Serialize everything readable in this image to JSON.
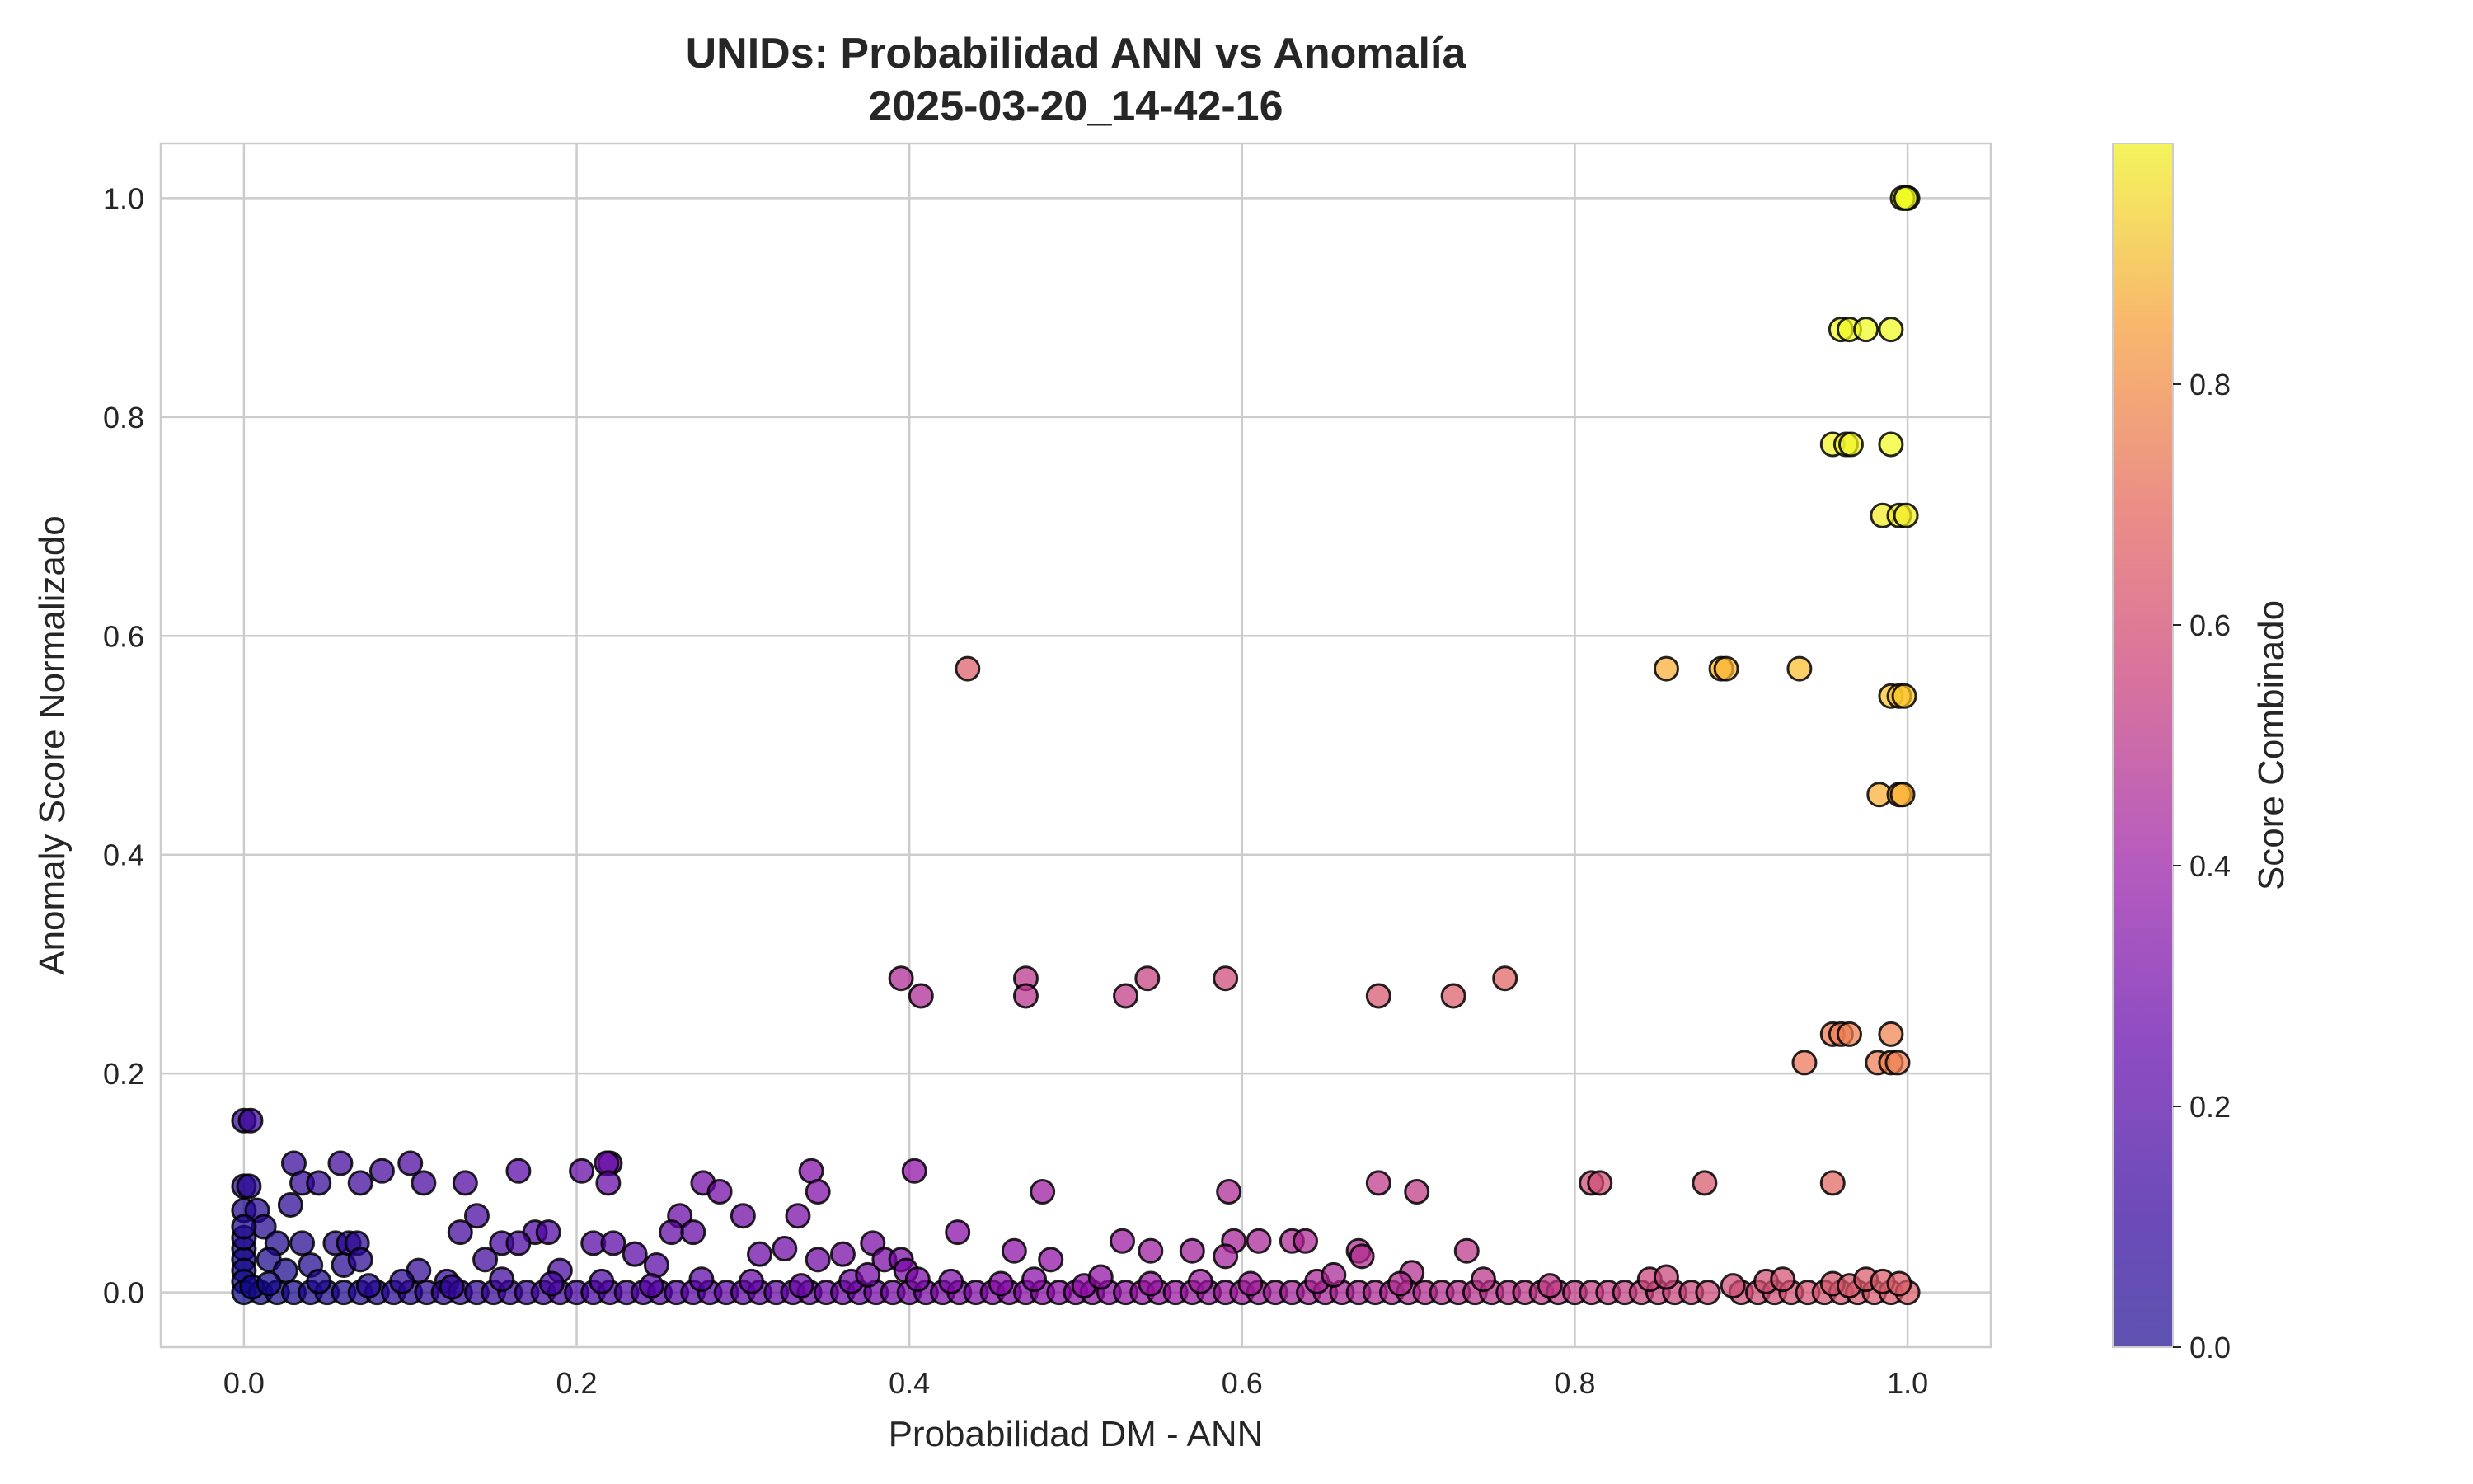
{
  "chart_data": {
    "type": "scatter",
    "title": "UNIDs: Probabilidad ANN vs Anomalía",
    "subtitle": "2025-03-20_14-42-16",
    "xlabel": "Probabilidad DM - ANN",
    "ylabel": "Anomaly Score Normalizado",
    "xlim": [
      -0.05,
      1.05
    ],
    "ylim": [
      -0.05,
      1.05
    ],
    "x_ticks": [
      0.0,
      0.2,
      0.4,
      0.6,
      0.8,
      1.0
    ],
    "y_ticks": [
      0.0,
      0.2,
      0.4,
      0.6,
      0.8,
      1.0
    ],
    "x_tick_labels": [
      "0.0",
      "0.2",
      "0.4",
      "0.6",
      "0.8",
      "1.0"
    ],
    "y_tick_labels": [
      "0.0",
      "0.2",
      "0.4",
      "0.6",
      "0.8",
      "1.0"
    ],
    "grid": true,
    "colormap": "plasma",
    "marker_edge_color": "#000000",
    "colorbar": {
      "label": "Score Combinado",
      "range": [
        0.0,
        1.0
      ],
      "ticks": [
        0.0,
        0.2,
        0.4,
        0.6,
        0.8
      ],
      "tick_labels": [
        "0.0",
        "0.2",
        "0.4",
        "0.6",
        "0.8"
      ]
    },
    "points": [
      [
        1.0,
        1.0
      ],
      [
        0.997,
        1.0
      ],
      [
        0.999,
        1.0
      ],
      [
        0.96,
        0.88
      ],
      [
        0.965,
        0.88
      ],
      [
        0.975,
        0.88
      ],
      [
        0.99,
        0.88
      ],
      [
        0.955,
        0.775
      ],
      [
        0.963,
        0.775
      ],
      [
        0.966,
        0.775
      ],
      [
        0.99,
        0.775
      ],
      [
        0.985,
        0.71
      ],
      [
        0.995,
        0.71
      ],
      [
        0.999,
        0.71
      ],
      [
        0.435,
        0.57
      ],
      [
        0.855,
        0.57
      ],
      [
        0.888,
        0.57
      ],
      [
        0.891,
        0.57
      ],
      [
        0.935,
        0.57
      ],
      [
        0.99,
        0.545
      ],
      [
        0.995,
        0.545
      ],
      [
        0.998,
        0.545
      ],
      [
        0.983,
        0.455
      ],
      [
        0.995,
        0.455
      ],
      [
        0.997,
        0.455
      ],
      [
        0.395,
        0.287
      ],
      [
        0.47,
        0.287
      ],
      [
        0.543,
        0.287
      ],
      [
        0.59,
        0.287
      ],
      [
        0.758,
        0.287
      ],
      [
        0.407,
        0.271
      ],
      [
        0.47,
        0.271
      ],
      [
        0.53,
        0.271
      ],
      [
        0.682,
        0.271
      ],
      [
        0.727,
        0.271
      ],
      [
        0.955,
        0.236
      ],
      [
        0.96,
        0.236
      ],
      [
        0.965,
        0.236
      ],
      [
        0.99,
        0.236
      ],
      [
        0.938,
        0.21
      ],
      [
        0.982,
        0.21
      ],
      [
        0.99,
        0.21
      ],
      [
        0.994,
        0.21
      ],
      [
        0.0,
        0.157
      ],
      [
        0.004,
        0.157
      ],
      [
        0.03,
        0.118
      ],
      [
        0.058,
        0.118
      ],
      [
        0.1,
        0.118
      ],
      [
        0.22,
        0.118
      ],
      [
        0.218,
        0.118
      ],
      [
        0.083,
        0.111
      ],
      [
        0.165,
        0.111
      ],
      [
        0.203,
        0.111
      ],
      [
        0.341,
        0.111
      ],
      [
        0.403,
        0.111
      ],
      [
        0.035,
        0.1
      ],
      [
        0.045,
        0.1
      ],
      [
        0.07,
        0.1
      ],
      [
        0.108,
        0.1
      ],
      [
        0.133,
        0.1
      ],
      [
        0.219,
        0.1
      ],
      [
        0.276,
        0.1
      ],
      [
        0.682,
        0.1
      ],
      [
        0.81,
        0.1
      ],
      [
        0.815,
        0.1
      ],
      [
        0.878,
        0.1
      ],
      [
        0.955,
        0.1
      ],
      [
        0.0,
        0.097
      ],
      [
        0.003,
        0.097
      ],
      [
        0.286,
        0.092
      ],
      [
        0.345,
        0.092
      ],
      [
        0.48,
        0.092
      ],
      [
        0.592,
        0.092
      ],
      [
        0.705,
        0.092
      ],
      [
        0.028,
        0.08
      ],
      [
        0.0,
        0.075
      ],
      [
        0.008,
        0.075
      ],
      [
        0.14,
        0.07
      ],
      [
        0.262,
        0.07
      ],
      [
        0.3,
        0.07
      ],
      [
        0.333,
        0.07
      ],
      [
        0.012,
        0.06
      ],
      [
        0.13,
        0.055
      ],
      [
        0.175,
        0.055
      ],
      [
        0.183,
        0.055
      ],
      [
        0.257,
        0.055
      ],
      [
        0.27,
        0.055
      ],
      [
        0.429,
        0.055
      ],
      [
        0.02,
        0.045
      ],
      [
        0.035,
        0.045
      ],
      [
        0.055,
        0.045
      ],
      [
        0.063,
        0.045
      ],
      [
        0.068,
        0.045
      ],
      [
        0.155,
        0.045
      ],
      [
        0.165,
        0.045
      ],
      [
        0.21,
        0.045
      ],
      [
        0.222,
        0.045
      ],
      [
        0.378,
        0.045
      ],
      [
        0.528,
        0.047
      ],
      [
        0.595,
        0.047
      ],
      [
        0.61,
        0.047
      ],
      [
        0.63,
        0.047
      ],
      [
        0.638,
        0.047
      ],
      [
        0.0,
        0.04
      ],
      [
        0.0,
        0.03
      ],
      [
        0.0,
        0.02
      ],
      [
        0.0,
        0.01
      ],
      [
        0.0,
        0.05
      ],
      [
        0.0,
        0.06
      ],
      [
        0.015,
        0.03
      ],
      [
        0.025,
        0.02
      ],
      [
        0.04,
        0.025
      ],
      [
        0.06,
        0.025
      ],
      [
        0.07,
        0.03
      ],
      [
        0.105,
        0.02
      ],
      [
        0.122,
        0.01
      ],
      [
        0.145,
        0.03
      ],
      [
        0.19,
        0.02
      ],
      [
        0.235,
        0.035
      ],
      [
        0.248,
        0.025
      ],
      [
        0.31,
        0.035
      ],
      [
        0.325,
        0.04
      ],
      [
        0.345,
        0.03
      ],
      [
        0.36,
        0.035
      ],
      [
        0.385,
        0.03
      ],
      [
        0.395,
        0.03
      ],
      [
        0.398,
        0.02
      ],
      [
        0.463,
        0.038
      ],
      [
        0.485,
        0.03
      ],
      [
        0.545,
        0.038
      ],
      [
        0.57,
        0.038
      ],
      [
        0.59,
        0.033
      ],
      [
        0.67,
        0.038
      ],
      [
        0.672,
        0.033
      ],
      [
        0.735,
        0.038
      ],
      [
        0.702,
        0.018
      ],
      [
        0.0,
        0.0
      ],
      [
        0.01,
        0.0
      ],
      [
        0.02,
        0.0
      ],
      [
        0.03,
        0.0
      ],
      [
        0.04,
        0.0
      ],
      [
        0.05,
        0.0
      ],
      [
        0.06,
        0.0
      ],
      [
        0.07,
        0.0
      ],
      [
        0.08,
        0.0
      ],
      [
        0.09,
        0.0
      ],
      [
        0.1,
        0.0
      ],
      [
        0.11,
        0.0
      ],
      [
        0.12,
        0.0
      ],
      [
        0.13,
        0.0
      ],
      [
        0.14,
        0.0
      ],
      [
        0.15,
        0.0
      ],
      [
        0.16,
        0.0
      ],
      [
        0.17,
        0.0
      ],
      [
        0.18,
        0.0
      ],
      [
        0.19,
        0.0
      ],
      [
        0.2,
        0.0
      ],
      [
        0.21,
        0.0
      ],
      [
        0.22,
        0.0
      ],
      [
        0.23,
        0.0
      ],
      [
        0.24,
        0.0
      ],
      [
        0.25,
        0.0
      ],
      [
        0.26,
        0.0
      ],
      [
        0.27,
        0.0
      ],
      [
        0.28,
        0.0
      ],
      [
        0.29,
        0.0
      ],
      [
        0.3,
        0.0
      ],
      [
        0.31,
        0.0
      ],
      [
        0.32,
        0.0
      ],
      [
        0.33,
        0.0
      ],
      [
        0.34,
        0.0
      ],
      [
        0.35,
        0.0
      ],
      [
        0.36,
        0.0
      ],
      [
        0.37,
        0.0
      ],
      [
        0.38,
        0.0
      ],
      [
        0.39,
        0.0
      ],
      [
        0.4,
        0.0
      ],
      [
        0.41,
        0.0
      ],
      [
        0.42,
        0.0
      ],
      [
        0.43,
        0.0
      ],
      [
        0.44,
        0.0
      ],
      [
        0.45,
        0.0
      ],
      [
        0.46,
        0.0
      ],
      [
        0.47,
        0.0
      ],
      [
        0.48,
        0.0
      ],
      [
        0.49,
        0.0
      ],
      [
        0.5,
        0.0
      ],
      [
        0.51,
        0.0
      ],
      [
        0.52,
        0.0
      ],
      [
        0.53,
        0.0
      ],
      [
        0.54,
        0.0
      ],
      [
        0.55,
        0.0
      ],
      [
        0.56,
        0.0
      ],
      [
        0.57,
        0.0
      ],
      [
        0.58,
        0.0
      ],
      [
        0.59,
        0.0
      ],
      [
        0.6,
        0.0
      ],
      [
        0.61,
        0.0
      ],
      [
        0.62,
        0.0
      ],
      [
        0.63,
        0.0
      ],
      [
        0.64,
        0.0
      ],
      [
        0.65,
        0.0
      ],
      [
        0.66,
        0.0
      ],
      [
        0.67,
        0.0
      ],
      [
        0.68,
        0.0
      ],
      [
        0.69,
        0.0
      ],
      [
        0.7,
        0.0
      ],
      [
        0.71,
        0.0
      ],
      [
        0.72,
        0.0
      ],
      [
        0.73,
        0.0
      ],
      [
        0.74,
        0.0
      ],
      [
        0.75,
        0.0
      ],
      [
        0.76,
        0.0
      ],
      [
        0.77,
        0.0
      ],
      [
        0.78,
        0.0
      ],
      [
        0.79,
        0.0
      ],
      [
        0.8,
        0.0
      ],
      [
        0.81,
        0.0
      ],
      [
        0.82,
        0.0
      ],
      [
        0.83,
        0.0
      ],
      [
        0.84,
        0.0
      ],
      [
        0.85,
        0.0
      ],
      [
        0.86,
        0.0
      ],
      [
        0.87,
        0.0
      ],
      [
        0.88,
        0.0
      ],
      [
        0.9,
        0.0
      ],
      [
        0.91,
        0.0
      ],
      [
        0.92,
        0.0
      ],
      [
        0.93,
        0.0
      ],
      [
        0.94,
        0.0
      ],
      [
        0.95,
        0.0
      ],
      [
        0.96,
        0.0
      ],
      [
        0.97,
        0.0
      ],
      [
        0.98,
        0.0
      ],
      [
        0.99,
        0.0
      ],
      [
        1.0,
        0.0
      ],
      [
        0.005,
        0.005
      ],
      [
        0.015,
        0.008
      ],
      [
        0.045,
        0.01
      ],
      [
        0.075,
        0.006
      ],
      [
        0.095,
        0.01
      ],
      [
        0.125,
        0.005
      ],
      [
        0.155,
        0.012
      ],
      [
        0.185,
        0.008
      ],
      [
        0.215,
        0.01
      ],
      [
        0.245,
        0.006
      ],
      [
        0.275,
        0.012
      ],
      [
        0.305,
        0.01
      ],
      [
        0.335,
        0.006
      ],
      [
        0.365,
        0.01
      ],
      [
        0.375,
        0.016
      ],
      [
        0.405,
        0.012
      ],
      [
        0.425,
        0.01
      ],
      [
        0.455,
        0.008
      ],
      [
        0.475,
        0.012
      ],
      [
        0.505,
        0.006
      ],
      [
        0.515,
        0.014
      ],
      [
        0.545,
        0.008
      ],
      [
        0.575,
        0.01
      ],
      [
        0.605,
        0.008
      ],
      [
        0.645,
        0.01
      ],
      [
        0.655,
        0.016
      ],
      [
        0.695,
        0.008
      ],
      [
        0.745,
        0.012
      ],
      [
        0.785,
        0.006
      ],
      [
        0.845,
        0.012
      ],
      [
        0.855,
        0.014
      ],
      [
        0.895,
        0.006
      ],
      [
        0.915,
        0.01
      ],
      [
        0.925,
        0.012
      ],
      [
        0.955,
        0.008
      ],
      [
        0.965,
        0.006
      ],
      [
        0.975,
        0.012
      ],
      [
        0.985,
        0.01
      ],
      [
        0.995,
        0.008
      ]
    ]
  }
}
